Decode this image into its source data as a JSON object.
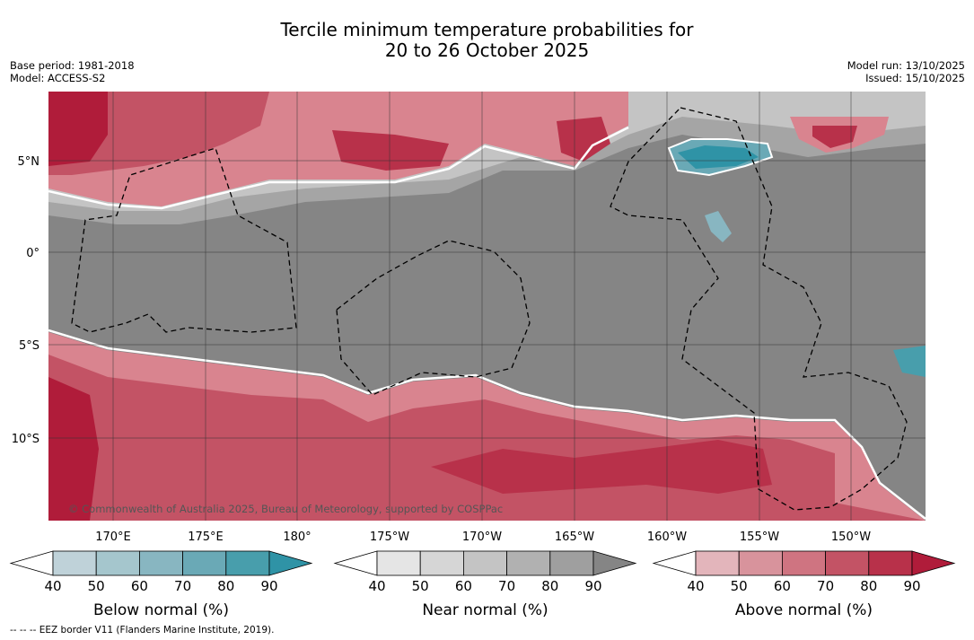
{
  "title": {
    "line1": "Tercile minimum temperature probabilities for",
    "line2": "20 to 26 October 2025"
  },
  "meta_left": {
    "base_period": "Base period: 1981-2018",
    "model": "Model: ACCESS-S2"
  },
  "meta_right": {
    "model_run": "Model run: 13/10/2025",
    "issued": "Issued: 15/10/2025"
  },
  "map": {
    "lat_labels": [
      "5°N",
      "0°",
      "5°S",
      "10°S"
    ],
    "lon_labels": [
      "170°E",
      "175°E",
      "180°",
      "175°W",
      "170°W",
      "165°W",
      "160°W",
      "155°W",
      "150°W"
    ],
    "copyright": "© Commonwealth of Australia 2025, Bureau of Meteorology, supported by COSPPac",
    "colors": {
      "near_normal_dark": "#858585",
      "above_light": "#d9848f",
      "above_dark": "#b01c3a",
      "below": "#2f93a6"
    }
  },
  "colorbars": [
    {
      "title": "Below normal (%)",
      "ticks": [
        "40",
        "50",
        "60",
        "70",
        "80",
        "90"
      ],
      "colors": [
        "#bfd2d9",
        "#a5c6cd",
        "#88b6c1",
        "#6aa9b6",
        "#489eac",
        "#2f93a6"
      ]
    },
    {
      "title": "Near normal (%)",
      "ticks": [
        "40",
        "50",
        "60",
        "70",
        "80",
        "90"
      ],
      "colors": [
        "#e5e5e5",
        "#d6d6d6",
        "#c4c4c4",
        "#b1b1b1",
        "#9f9f9f",
        "#858585"
      ]
    },
    {
      "title": "Above normal (%)",
      "ticks": [
        "40",
        "50",
        "60",
        "70",
        "80",
        "90"
      ],
      "colors": [
        "#e3b5bb",
        "#d8939c",
        "#cf7481",
        "#c35365",
        "#b8314a",
        "#b01c3a"
      ]
    }
  ],
  "footer": "-- -- -- EEZ border V11 (Flanders Marine Institute, 2019)."
}
